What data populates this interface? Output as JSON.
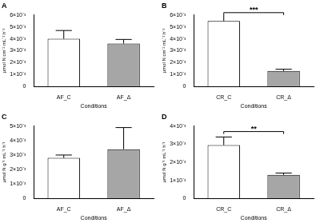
{
  "chart_data": [
    {
      "type": "bar",
      "title": "A",
      "categories": [
        "AF_C",
        "AF_Δ"
      ],
      "values": [
        0.004,
        0.0036
      ],
      "errors": [
        0.0007,
        0.00035
      ],
      "colors": [
        "#ffffff",
        "#a6a6a6"
      ],
      "x_label": "Conditions",
      "y_label": "µmol N cm⁻² mL⁻¹ h⁻¹",
      "ylim": [
        0,
        0.006
      ],
      "yticks": [
        0,
        {
          "value": 0.001,
          "label": "1×10⁻³"
        },
        {
          "value": 0.002,
          "label": "2×10⁻³"
        },
        {
          "value": 0.003,
          "label": "3×10⁻³"
        },
        {
          "value": 0.004,
          "label": "4×10⁻³"
        },
        {
          "value": 0.005,
          "label": "5×10⁻³"
        },
        {
          "value": 0.006,
          "label": "6×10⁻³"
        }
      ],
      "grid": false
    },
    {
      "type": "bar",
      "title": "B",
      "categories": [
        "CR_C",
        "CR_Δ"
      ],
      "values": [
        0.0055,
        0.0013
      ],
      "errors": [
        0.0007,
        0.00015
      ],
      "colors": [
        "#ffffff",
        "#a6a6a6"
      ],
      "x_label": "Conditions",
      "y_label": "µmol N cm⁻² mL⁻¹ h⁻¹",
      "ylim": [
        0,
        0.006
      ],
      "yticks": [
        0,
        {
          "value": 0.001,
          "label": "1×10⁻³"
        },
        {
          "value": 0.002,
          "label": "2×10⁻³"
        },
        {
          "value": 0.003,
          "label": "3×10⁻³"
        },
        {
          "value": 0.004,
          "label": "4×10⁻³"
        },
        {
          "value": 0.005,
          "label": "5×10⁻³"
        },
        {
          "value": 0.006,
          "label": "6×10⁻³"
        }
      ],
      "grid": false,
      "annotations": [
        {
          "text": "***",
          "between": [
            0,
            1
          ],
          "y": 0.0062
        }
      ]
    },
    {
      "type": "bar",
      "title": "C",
      "categories": [
        "AF_C",
        "AF_Δ"
      ],
      "values": [
        0.0028,
        0.0034
      ],
      "errors": [
        0.0002,
        0.0015
      ],
      "colors": [
        "#ffffff",
        "#a6a6a6"
      ],
      "x_label": "Conditions",
      "y_label": "µmol N g⁻¹ mL⁻¹ h⁻¹",
      "ylim": [
        0,
        0.005
      ],
      "yticks": [
        0,
        {
          "value": 0.001,
          "label": "1×10⁻³"
        },
        {
          "value": 0.002,
          "label": "2×10⁻³"
        },
        {
          "value": 0.003,
          "label": "3×10⁻³"
        },
        {
          "value": 0.004,
          "label": "4×10⁻³"
        },
        {
          "value": 0.005,
          "label": "5×10⁻³"
        }
      ],
      "grid": false
    },
    {
      "type": "bar",
      "title": "D",
      "categories": [
        "CR_C",
        "CR_Δ"
      ],
      "values": [
        0.00295,
        0.0013
      ],
      "errors": [
        0.00045,
        0.0001
      ],
      "colors": [
        "#ffffff",
        "#a6a6a6"
      ],
      "x_label": "Conditions",
      "y_label": "µmol N g⁻¹ mL⁻¹ h⁻¹",
      "ylim": [
        0,
        0.004
      ],
      "yticks": [
        0,
        {
          "value": 0.001,
          "label": "1×10⁻³"
        },
        {
          "value": 0.002,
          "label": "2×10⁻³"
        },
        {
          "value": 0.003,
          "label": "3×10⁻³"
        },
        {
          "value": 0.004,
          "label": "4×10⁻³"
        }
      ],
      "grid": false,
      "annotations": [
        {
          "text": "**",
          "between": [
            0,
            1
          ],
          "y": 0.0037
        }
      ]
    }
  ]
}
